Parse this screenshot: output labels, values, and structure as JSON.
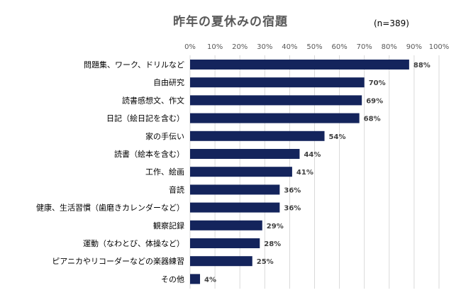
{
  "title": "昨年の夏休みの宿題",
  "sample_size": "(n=389)",
  "colors": {
    "bar": "#14245c",
    "grid": "#d9d9d9",
    "text": "#000000"
  },
  "chart_data": {
    "type": "bar",
    "orientation": "horizontal",
    "title": "昨年の夏休みの宿題",
    "xlim": [
      0,
      100
    ],
    "ticks": [
      "0%",
      "10%",
      "20%",
      "30%",
      "40%",
      "50%",
      "60%",
      "70%",
      "80%",
      "90%",
      "100%"
    ],
    "categories": [
      "問題集、ワーク、ドリルなど",
      "自由研究",
      "読書感想文、作文",
      "日記（絵日記を含む）",
      "家の手伝い",
      "読書（絵本を含む）",
      "工作、絵画",
      "音読",
      "健康、生活習慣（歯磨きカレンダーなど）",
      "観察記録",
      "運動（なわとび、体操など）",
      "ピアニカやリコーダーなどの楽器練習",
      "その他"
    ],
    "values": [
      88,
      70,
      69,
      68,
      54,
      44,
      41,
      36,
      36,
      29,
      28,
      25,
      4
    ],
    "value_labels": [
      "88%",
      "70%",
      "69%",
      "68%",
      "54%",
      "44%",
      "41%",
      "36%",
      "36%",
      "29%",
      "28%",
      "25%",
      "4%"
    ],
    "grid": true,
    "legend": "none"
  }
}
